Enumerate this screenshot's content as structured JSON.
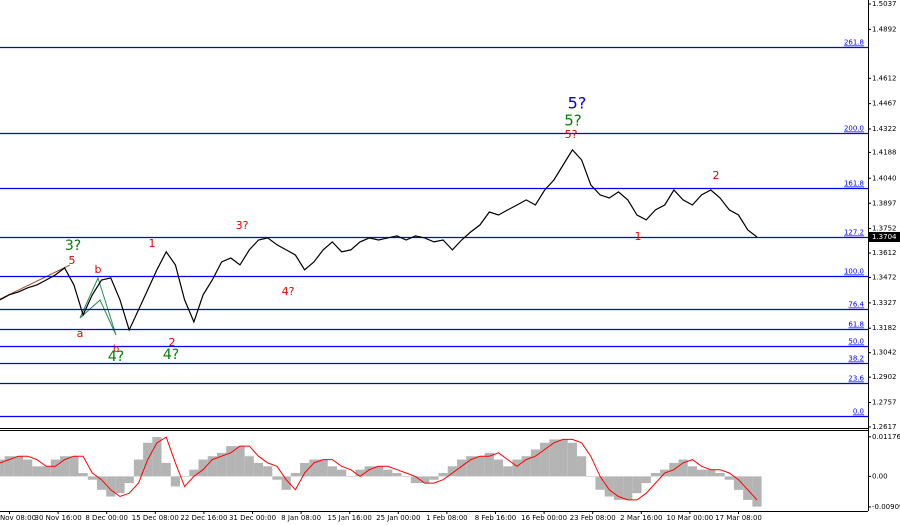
{
  "chart_data": [
    {
      "type": "line",
      "color": "#000000",
      "values": [
        1.3344,
        1.3373,
        1.339,
        1.3413,
        1.343,
        1.3458,
        1.3487,
        1.3527,
        1.343,
        1.3258,
        1.3373,
        1.3458,
        1.347,
        1.3344,
        1.3172,
        1.3287,
        1.3401,
        1.3516,
        1.3619,
        1.3544,
        1.3344,
        1.3218,
        1.3373,
        1.3458,
        1.3561,
        1.3584,
        1.3544,
        1.363,
        1.3687,
        1.3699,
        1.3659,
        1.363,
        1.3601,
        1.3516,
        1.3561,
        1.363,
        1.3676,
        1.3619,
        1.363,
        1.3676,
        1.3699,
        1.3687,
        1.3699,
        1.371,
        1.3687,
        1.371,
        1.3699,
        1.3676,
        1.3687,
        1.363,
        1.3687,
        1.3733,
        1.3773,
        1.3847,
        1.383,
        1.3859,
        1.3887,
        1.3916,
        1.3887,
        1.3973,
        1.403,
        1.4116,
        1.4202,
        1.4145,
        1.4002,
        1.3945,
        1.3927,
        1.3962,
        1.3916,
        1.383,
        1.3802,
        1.3859,
        1.3887,
        1.3973,
        1.3916,
        1.3887,
        1.3945,
        1.3973,
        1.3927,
        1.3859,
        1.383,
        1.3744,
        1.3704
      ],
      "ylim": [
        1.2611,
        1.506
      ],
      "yticks": [
        1.5037,
        1.4892,
        1.4612,
        1.4467,
        1.4322,
        1.4188,
        {
          "value": 1.404,
          "label": "1.4040"
        },
        1.3897,
        1.3752,
        1.3612,
        1.3472,
        1.3327,
        1.3182,
        1.3042,
        1.2902,
        1.2757,
        1.2617
      ],
      "last_price": 1.3704,
      "xtick_labels": [
        "Nov 08:00",
        "30 Nov 16:00",
        "8 Dec 00:00",
        "15 Dec 08:00",
        "22 Dec 16:00",
        "31 Dec 00:00",
        "8 Jan 08:00",
        "15 Jan 16:00",
        "25 Jan 00:00",
        "1 Feb 08:00",
        "8 Feb 16:00",
        "16 Feb 00:00",
        "23 Feb 08:00",
        "2 Mar 16:00",
        "10 Mar 00:00",
        "17 Mar 08:00"
      ],
      "level_color": "#0000ff",
      "levels": [
        {
          "label": "261.8",
          "value": 1.4791
        },
        {
          "label": "200.0",
          "value": 1.4299
        },
        {
          "label": "161.8",
          "value": 1.3985
        },
        {
          "label": "127.2",
          "value": 1.3704
        },
        {
          "label": "100.0",
          "value": 1.3481
        },
        {
          "label": "76.4",
          "value": 1.3292
        },
        {
          "label": "61.8",
          "value": 1.3178
        },
        {
          "label": "50.0",
          "value": 1.3081
        },
        {
          "label": "38.2",
          "value": 1.2984
        },
        {
          "label": "23.6",
          "value": 1.2869
        },
        {
          "label": "0.0",
          "value": 1.268
        }
      ],
      "annotations": [
        {
          "text": "3?",
          "color": "#008000"
        },
        {
          "text": "5",
          "color": "#e60000"
        },
        {
          "text": "b",
          "color": "#e60000"
        },
        {
          "text": "a",
          "color": "#e60000"
        },
        {
          "text": "1",
          "color": "#e60000"
        },
        {
          "text": "b",
          "color": "#e60000"
        },
        {
          "text": "4?",
          "color": "#008000"
        },
        {
          "text": "2",
          "color": "#e60000"
        },
        {
          "text": "4?",
          "color": "#008000"
        },
        {
          "text": "3?",
          "color": "#e60000"
        },
        {
          "text": "4?",
          "color": "#e60000"
        },
        {
          "text": "5?",
          "color": "#0000cc"
        },
        {
          "text": "5?",
          "color": "#008000"
        },
        {
          "text": "5?",
          "color": "#e60000"
        },
        {
          "text": "1",
          "color": "#e60000"
        },
        {
          "text": "2",
          "color": "#e60000"
        }
      ]
    },
    {
      "type": "bar",
      "color": "#b4b4b4",
      "values": [
        0.005,
        0.006,
        0.006,
        0.005,
        0.003,
        0.003,
        0.005,
        0.006,
        0.006,
        0.001,
        -0.001,
        -0.004,
        -0.006,
        -0.005,
        -0.002,
        0.005,
        0.01,
        0.0117,
        0.004,
        -0.003,
        0.0,
        0.002,
        0.005,
        0.006,
        0.007,
        0.009,
        0.009,
        0.006,
        0.004,
        0.003,
        -0.001,
        -0.004,
        0.001,
        0.004,
        0.005,
        0.005,
        0.003,
        0.002,
        0.0,
        0.002,
        0.003,
        0.003,
        0.002,
        0.001,
        0.0,
        -0.002,
        -0.002,
        -0.001,
        0.001,
        0.003,
        0.005,
        0.006,
        0.006,
        0.007,
        0.005,
        0.003,
        0.005,
        0.006,
        0.008,
        0.01,
        0.011,
        0.011,
        0.01,
        0.006,
        0.0,
        -0.004,
        -0.006,
        -0.007,
        -0.007,
        -0.005,
        -0.002,
        0.001,
        0.002,
        0.004,
        0.005,
        0.003,
        0.002,
        0.002,
        0.001,
        -0.001,
        -0.004,
        -0.007,
        -0.009
      ],
      "line_color": "#ff0000",
      "line_values": [
        0.004,
        0.005,
        0.006,
        0.006,
        0.005,
        0.003,
        0.003,
        0.005,
        0.006,
        0.006,
        0.001,
        -0.001,
        -0.004,
        -0.006,
        -0.005,
        -0.002,
        0.005,
        0.01,
        0.0117,
        0.004,
        -0.003,
        0.0,
        0.002,
        0.005,
        0.006,
        0.007,
        0.009,
        0.009,
        0.006,
        0.004,
        0.003,
        -0.001,
        -0.004,
        0.001,
        0.004,
        0.005,
        0.005,
        0.003,
        0.002,
        0.0,
        0.002,
        0.003,
        0.003,
        0.002,
        0.001,
        0.0,
        -0.002,
        -0.002,
        -0.001,
        0.001,
        0.003,
        0.005,
        0.006,
        0.006,
        0.007,
        0.005,
        0.003,
        0.005,
        0.006,
        0.008,
        0.01,
        0.011,
        0.011,
        0.01,
        0.006,
        0.0,
        -0.004,
        -0.006,
        -0.007,
        -0.007,
        -0.005,
        -0.002,
        0.001,
        0.002,
        0.004,
        0.005,
        0.003,
        0.002,
        0.002,
        0.001,
        -0.001,
        -0.004,
        -0.007
      ],
      "ylim": [
        -0.0103,
        0.0135
      ],
      "yticks": [
        0.01176,
        {
          "value": 0,
          "label": "0.00"
        },
        -0.00909
      ]
    }
  ]
}
